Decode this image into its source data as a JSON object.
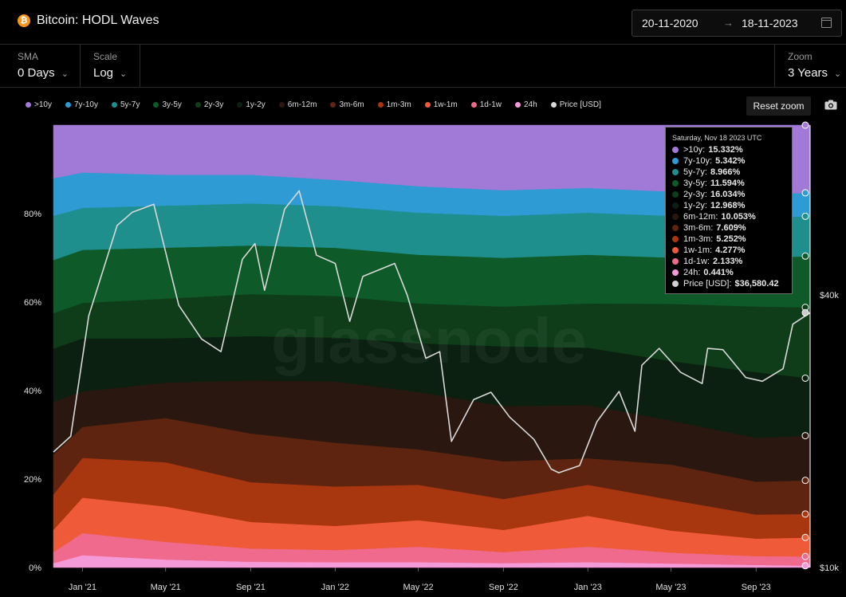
{
  "header": {
    "title": "Bitcoin: HODL Waves",
    "logo_icon": "bitcoin-icon",
    "date_from": "20-11-2020",
    "date_to": "18-11-2023",
    "arrow": "→"
  },
  "controls": {
    "sma": {
      "label": "SMA",
      "value": "0 Days"
    },
    "scale": {
      "label": "Scale",
      "value": "Log"
    },
    "zoom": {
      "label": "Zoom",
      "value": "3 Years"
    }
  },
  "toolbar": {
    "reset_label": "Reset zoom",
    "camera_icon": "camera-icon"
  },
  "watermark": "glassnode",
  "tooltip": {
    "header": "Saturday, Nov 18 2023 UTC",
    "rows": [
      {
        "name": ">10y",
        "value": "15.332%",
        "color": "#a07ad6"
      },
      {
        "name": "7y-10y",
        "value": "5.342%",
        "color": "#2e9bd4"
      },
      {
        "name": "5y-7y",
        "value": "8.966%",
        "color": "#1e8f8c"
      },
      {
        "name": "3y-5y",
        "value": "11.594%",
        "color": "#0e5a28"
      },
      {
        "name": "2y-3y",
        "value": "16.034%",
        "color": "#0f3d1a"
      },
      {
        "name": "1y-2y",
        "value": "12.968%",
        "color": "#0b2010"
      },
      {
        "name": "6m-12m",
        "value": "10.053%",
        "color": "#2a1810"
      },
      {
        "name": "3m-6m",
        "value": "7.609%",
        "color": "#5e2410"
      },
      {
        "name": "1m-3m",
        "value": "5.252%",
        "color": "#a8360e"
      },
      {
        "name": "1w-1m",
        "value": "4.277%",
        "color": "#ef5a38"
      },
      {
        "name": "1d-1w",
        "value": "2.133%",
        "color": "#f06a8e"
      },
      {
        "name": "24h",
        "value": "0.441%",
        "color": "#f59ad8"
      },
      {
        "name": "Price [USD]",
        "value": "$36,580.42",
        "color": "#d0d0d0"
      }
    ]
  },
  "chart_data": {
    "type": "area",
    "stacked": true,
    "x_ticks": [
      "Jan '21",
      "May '21",
      "Sep '21",
      "Jan '22",
      "May '22",
      "Sep '22",
      "Jan '23",
      "May '23",
      "Sep '23"
    ],
    "y_ticks": [
      "0%",
      "20%",
      "40%",
      "60%",
      "80%"
    ],
    "y2_ticks": [
      "$10k",
      "$40k"
    ],
    "ylim": [
      0,
      100
    ],
    "y2_scale": "log",
    "y2_lim": [
      10000,
      95000
    ],
    "legend_placement": "top",
    "x": [
      "2020-11-20",
      "2021-01-01",
      "2021-05-01",
      "2021-09-01",
      "2022-01-01",
      "2022-05-01",
      "2022-09-01",
      "2023-01-01",
      "2023-05-01",
      "2023-09-01",
      "2023-11-18"
    ],
    "series": [
      {
        "name": "24h",
        "color": "#f59ad8",
        "values": [
          1.0,
          2.8,
          1.8,
          1.3,
          1.2,
          1.2,
          1.0,
          1.2,
          0.9,
          0.6,
          0.4
        ]
      },
      {
        "name": "1d-1w",
        "color": "#f06a8e",
        "values": [
          2.5,
          5.0,
          4.0,
          3.0,
          2.8,
          3.5,
          2.5,
          3.5,
          2.5,
          2.0,
          2.1
        ]
      },
      {
        "name": "1w-1m",
        "color": "#ef5a38",
        "values": [
          5.0,
          8.0,
          8.0,
          6.0,
          5.5,
          6.0,
          5.0,
          7.0,
          5.0,
          4.0,
          4.3
        ]
      },
      {
        "name": "1m-3m",
        "color": "#a8360e",
        "values": [
          8.0,
          9.0,
          10.0,
          9.0,
          9.0,
          8.0,
          7.0,
          7.0,
          7.0,
          5.5,
          5.3
        ]
      },
      {
        "name": "3m-6m",
        "color": "#5e2410",
        "values": [
          9.0,
          7.0,
          10.0,
          11.0,
          10.0,
          8.0,
          8.5,
          6.0,
          8.0,
          7.5,
          7.6
        ]
      },
      {
        "name": "6m-12m",
        "color": "#2a1810",
        "values": [
          12.0,
          8.0,
          8.0,
          12.0,
          14.0,
          13.0,
          12.5,
          12.0,
          10.0,
          10.0,
          10.1
        ]
      },
      {
        "name": "1y-2y",
        "color": "#0b2010",
        "values": [
          12.0,
          12.0,
          10.0,
          10.0,
          10.0,
          11.0,
          13.5,
          13.0,
          13.5,
          15.0,
          13.0
        ]
      },
      {
        "name": "2y-3y",
        "color": "#0f3d1a",
        "values": [
          8.0,
          8.0,
          9.0,
          9.5,
          9.5,
          9.0,
          9.0,
          10.0,
          13.0,
          15.0,
          16.0
        ]
      },
      {
        "name": "3y-5y",
        "color": "#0e5a28",
        "values": [
          12.0,
          12.0,
          11.5,
          11.0,
          11.0,
          11.0,
          11.0,
          11.0,
          10.5,
          11.0,
          11.6
        ]
      },
      {
        "name": "5y-7y",
        "color": "#1e8f8c",
        "values": [
          10.0,
          9.5,
          9.5,
          9.5,
          9.5,
          9.5,
          9.5,
          9.5,
          9.5,
          9.2,
          9.0
        ]
      },
      {
        "name": "7y-10y",
        "color": "#2e9bd4",
        "values": [
          8.5,
          8.0,
          7.0,
          6.5,
          6.0,
          6.0,
          5.8,
          5.6,
          5.5,
          5.4,
          5.3
        ]
      },
      {
        "name": ">10y",
        "color": "#a07ad6",
        "values": [
          12.0,
          10.7,
          11.2,
          11.2,
          12.5,
          13.8,
          14.7,
          14.2,
          15.1,
          15.8,
          15.3
        ]
      }
    ],
    "price": {
      "name": "Price [USD]",
      "color": "#d9d9d9",
      "dates": [
        "2020-11-20",
        "2020-12-15",
        "2021-01-10",
        "2021-02-20",
        "2021-03-14",
        "2021-04-14",
        "2021-05-20",
        "2021-06-22",
        "2021-07-20",
        "2021-08-20",
        "2021-09-07",
        "2021-09-21",
        "2021-10-20",
        "2021-11-10",
        "2021-12-05",
        "2022-01-01",
        "2022-01-22",
        "2022-02-10",
        "2022-03-28",
        "2022-04-15",
        "2022-05-12",
        "2022-06-01",
        "2022-06-18",
        "2022-07-20",
        "2022-08-14",
        "2022-09-10",
        "2022-10-15",
        "2022-11-09",
        "2022-11-20",
        "2022-12-20",
        "2023-01-14",
        "2023-02-15",
        "2023-03-10",
        "2023-03-20",
        "2023-04-14",
        "2023-05-15",
        "2023-06-15",
        "2023-06-23",
        "2023-07-15",
        "2023-08-17",
        "2023-09-10",
        "2023-10-10",
        "2023-10-24",
        "2023-11-18"
      ],
      "values": [
        18000,
        19500,
        36000,
        57000,
        61000,
        63500,
        38000,
        32000,
        30000,
        48000,
        52000,
        41000,
        62000,
        68000,
        49000,
        47000,
        35000,
        44000,
        47000,
        40000,
        29000,
        30000,
        19000,
        23500,
        24400,
        21500,
        19200,
        16500,
        16200,
        16800,
        21000,
        24500,
        20000,
        28000,
        30500,
        27000,
        25500,
        30500,
        30300,
        26300,
        25800,
        27500,
        34500,
        36580
      ]
    }
  }
}
